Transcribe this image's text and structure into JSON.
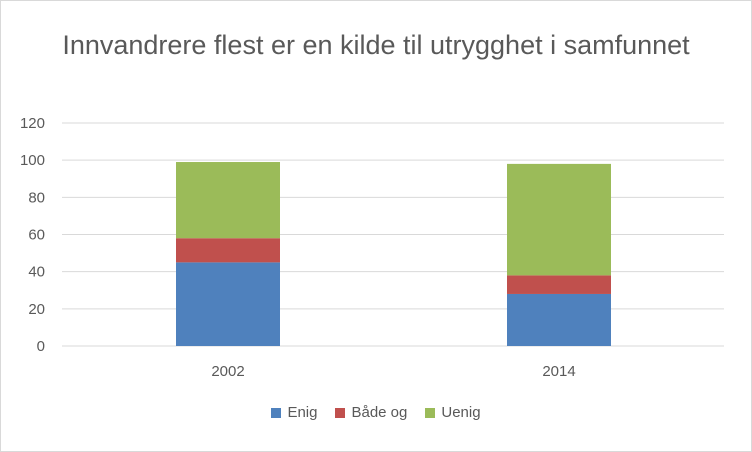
{
  "chart_data": {
    "type": "bar",
    "stacked": true,
    "title": "Innvandrere flest er en kilde til utrygghet i samfunnet",
    "categories": [
      "2002",
      "2014"
    ],
    "series": [
      {
        "name": "Enig",
        "values": [
          45,
          28
        ],
        "color": "#4f81bd"
      },
      {
        "name": "Både og",
        "values": [
          13,
          10
        ],
        "color": "#c0504d"
      },
      {
        "name": "Uenig",
        "values": [
          41,
          60
        ],
        "color": "#9bbb59"
      }
    ],
    "yticks": [
      "0",
      "20",
      "40",
      "60",
      "80",
      "100",
      "120"
    ],
    "ylim": [
      0,
      120
    ],
    "grid": true,
    "legend_position": "bottom",
    "xlabel": "",
    "ylabel": ""
  }
}
